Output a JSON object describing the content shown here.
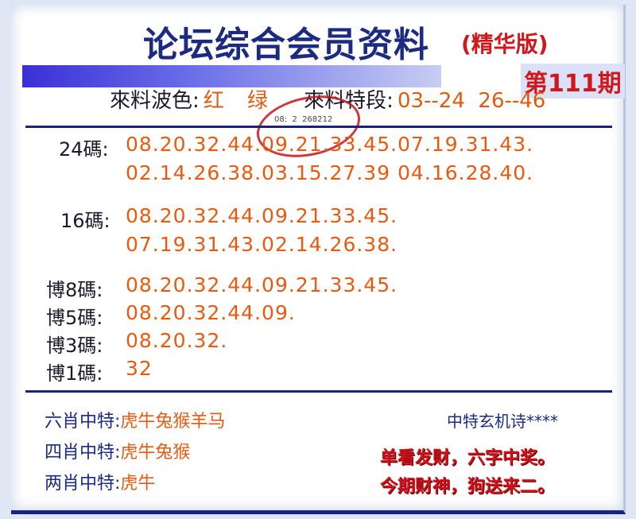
{
  "header": {
    "title": "论坛综合会员资料",
    "subtitle": "(精华版)",
    "issue": "第111期"
  },
  "info": {
    "color_label": "來料波色:",
    "colors": [
      "红",
      "绿"
    ],
    "segment_label": "來料特段:",
    "segments": "03--24  26--46"
  },
  "stamp": {
    "text": "08:  2  268212"
  },
  "codes": [
    {
      "label": "24碼:",
      "lines": [
        "08.20.32.44.09.21.33.45.07.19.31.43.",
        "02.14.26.38.03.15.27.39 04.16.28.40."
      ]
    },
    {
      "label": "16碼:",
      "lines": [
        "08.20.32.44.09.21.33.45.",
        "07.19.31.43.02.14.26.38."
      ]
    },
    {
      "label": "博8碼:",
      "lines": [
        "08.20.32.44.09.21.33.45."
      ]
    },
    {
      "label": "博5碼:",
      "lines": [
        "08.20.32.44.09."
      ]
    },
    {
      "label": "博3碼:",
      "lines": [
        "08.20.32."
      ]
    },
    {
      "label": "博1碼:",
      "lines": [
        "32"
      ]
    }
  ],
  "zodiac": [
    {
      "label": "六肖中特:",
      "value": "虎牛兔猴羊马"
    },
    {
      "label": "四肖中特:",
      "value": "虎牛兔猴"
    },
    {
      "label": "两肖中特:",
      "value": "虎牛"
    }
  ],
  "poem": {
    "title": "中特玄机诗****",
    "lines": [
      "单看发财，六字中奖。",
      "今期财神，狗送来二。"
    ]
  },
  "colors": {
    "navy": "#1c2a80",
    "orange": "#e85a10",
    "red": "#d0181c"
  }
}
